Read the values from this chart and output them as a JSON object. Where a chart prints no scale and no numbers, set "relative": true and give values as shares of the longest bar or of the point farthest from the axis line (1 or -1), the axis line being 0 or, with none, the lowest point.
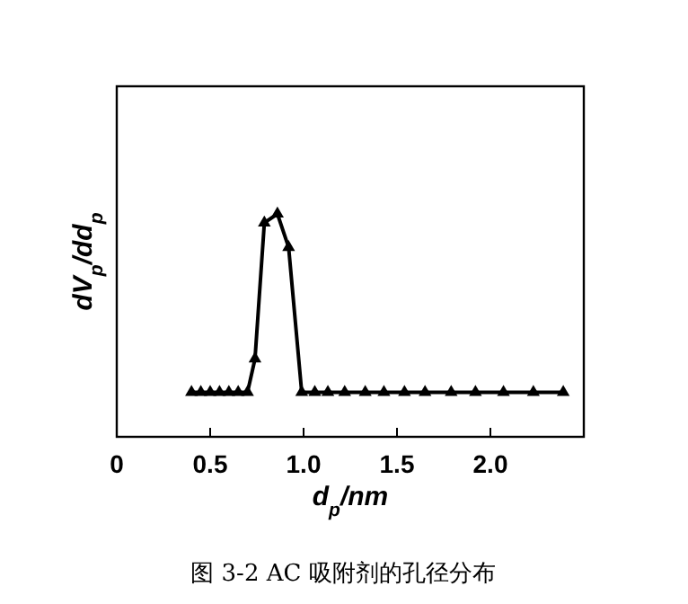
{
  "chart_data": {
    "type": "line",
    "relative": true,
    "xlabel": "d$_{p}$/nm",
    "ylabel": "dV$_{p}$/dd$_{p}$",
    "annotations": [
      "图 3-2 AC 吸附剂的孔径分布"
    ],
    "xlim": [
      0,
      2.5
    ],
    "xticks": [
      0,
      {
        "value": 0.5,
        "label": "0.5"
      },
      {
        "value": 1,
        "label": "1.0"
      },
      {
        "value": 1.5,
        "label": "1.5"
      },
      {
        "value": 2,
        "label": "2.0"
      }
    ],
    "marker": "triangle",
    "line_style": "solid",
    "grid": false,
    "series": [
      {
        "color": "#000000",
        "x": [
          0.4,
          0.45,
          0.5,
          0.55,
          0.6,
          0.65,
          0.7,
          0.74,
          0.79,
          0.86,
          0.92,
          0.99,
          1.06,
          1.13,
          1.22,
          1.33,
          1.43,
          1.54,
          1.65,
          1.79,
          1.92,
          2.07,
          2.23,
          2.39
        ],
        "values": [
          0.2,
          0.2,
          0.2,
          0.2,
          0.2,
          0.2,
          0.2,
          0.35,
          0.96,
          1,
          0.85,
          0.2,
          0.2,
          0.2,
          0.2,
          0.2,
          0.2,
          0.2,
          0.2,
          0.2,
          0.2,
          0.2,
          0.2,
          0.2
        ]
      }
    ]
  }
}
